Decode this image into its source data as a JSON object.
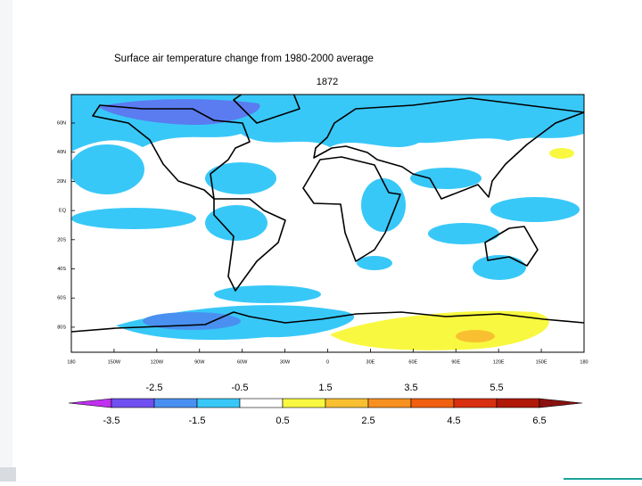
{
  "title": "Surface air temperature change from 1980-2000 average",
  "subtitle": "1872",
  "longitude_labels": [
    "180",
    "150W",
    "120W",
    "90W",
    "60W",
    "30W",
    "0",
    "30E",
    "60E",
    "90E",
    "120E",
    "150E",
    "180"
  ],
  "latitude_labels": [
    "60N",
    "40N",
    "20N",
    "EQ",
    "20S",
    "40S",
    "60S",
    "80S"
  ],
  "colorbar": {
    "levels": [
      -3.5,
      -2.5,
      -1.5,
      -0.5,
      0.5,
      1.5,
      2.5,
      3.5,
      4.5,
      5.5,
      6.5
    ],
    "colors": [
      "#c030f0",
      "#7050f0",
      "#4a90f0",
      "#38c8f8",
      "#ffffff",
      "#f8f840",
      "#f8c030",
      "#f89020",
      "#f06010",
      "#d83010",
      "#b01808",
      "#8a1010"
    ]
  }
}
